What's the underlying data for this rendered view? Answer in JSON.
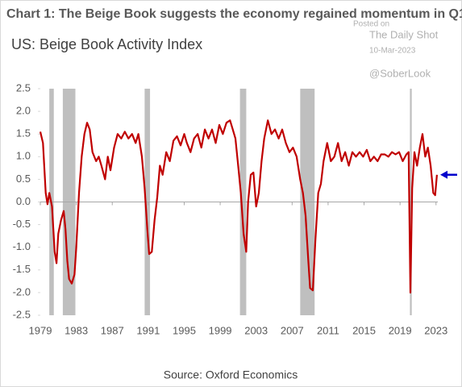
{
  "chart_data": {
    "type": "line",
    "title": "Chart 1: The Beige Book suggests the economy regained momentum in Q1",
    "subtitle": "US: Beige Book Activity Index",
    "source": "Source: Oxford Economics",
    "watermark": [
      "Posted on",
      "The Daily Shot",
      "10-Mar-2023",
      "@SoberLook"
    ],
    "color": "#c00000",
    "shade_color": "#bfbfbf",
    "shaded_periods": [
      [
        1980.0,
        1980.5
      ],
      [
        1981.5,
        1982.9
      ],
      [
        1990.6,
        1991.2
      ],
      [
        2001.2,
        2001.9
      ],
      [
        2007.9,
        2009.5
      ],
      [
        2020.1,
        2020.3
      ]
    ],
    "x": [
      1979.0,
      1979.3,
      1979.6,
      1979.8,
      1980.0,
      1980.3,
      1980.6,
      1980.8,
      1981.0,
      1981.3,
      1981.6,
      1981.8,
      1982.0,
      1982.2,
      1982.5,
      1982.8,
      1983.0,
      1983.3,
      1983.6,
      1983.9,
      1984.2,
      1984.5,
      1984.8,
      1985.2,
      1985.5,
      1985.8,
      1986.2,
      1986.5,
      1986.8,
      1987.2,
      1987.6,
      1988.0,
      1988.4,
      1988.8,
      1989.2,
      1989.6,
      1989.9,
      1990.3,
      1990.6,
      1990.9,
      1991.1,
      1991.4,
      1991.7,
      1992.0,
      1992.3,
      1992.6,
      1993.0,
      1993.4,
      1993.8,
      1994.2,
      1994.6,
      1995.0,
      1995.3,
      1995.7,
      1996.1,
      1996.5,
      1996.9,
      1997.3,
      1997.7,
      1998.1,
      1998.5,
      1998.9,
      1999.3,
      1999.7,
      2000.1,
      2000.4,
      2000.7,
      2001.0,
      2001.3,
      2001.6,
      2001.9,
      2002.1,
      2002.4,
      2002.7,
      2003.0,
      2003.3,
      2003.6,
      2003.9,
      2004.3,
      2004.7,
      2005.1,
      2005.5,
      2005.9,
      2006.3,
      2006.7,
      2007.1,
      2007.5,
      2007.9,
      2008.2,
      2008.5,
      2008.8,
      2009.0,
      2009.3,
      2009.6,
      2009.9,
      2010.2,
      2010.5,
      2010.9,
      2011.3,
      2011.7,
      2012.1,
      2012.5,
      2012.9,
      2013.3,
      2013.7,
      2014.1,
      2014.5,
      2014.9,
      2015.3,
      2015.7,
      2016.1,
      2016.5,
      2016.9,
      2017.3,
      2017.7,
      2018.1,
      2018.5,
      2018.9,
      2019.3,
      2019.7,
      2019.95,
      2020.15,
      2020.35,
      2020.6,
      2020.9,
      2021.2,
      2021.5,
      2021.8,
      2022.1,
      2022.4,
      2022.7,
      2022.9,
      2023.1
    ],
    "values": [
      1.55,
      1.3,
      0.2,
      -0.05,
      0.2,
      -0.1,
      -1.1,
      -1.35,
      -0.7,
      -0.4,
      -0.2,
      -0.6,
      -1.3,
      -1.7,
      -1.8,
      -1.6,
      -1.0,
      0.2,
      1.0,
      1.5,
      1.75,
      1.6,
      1.1,
      0.9,
      1.0,
      0.8,
      0.5,
      1.0,
      0.7,
      1.2,
      1.5,
      1.4,
      1.55,
      1.4,
      1.5,
      1.3,
      1.5,
      1.0,
      0.3,
      -0.6,
      -1.15,
      -1.1,
      -0.4,
      0.1,
      0.8,
      0.6,
      1.1,
      0.9,
      1.35,
      1.45,
      1.25,
      1.5,
      1.3,
      1.1,
      1.4,
      1.5,
      1.2,
      1.6,
      1.4,
      1.6,
      1.3,
      1.7,
      1.5,
      1.75,
      1.8,
      1.6,
      1.4,
      0.8,
      0.2,
      -0.7,
      -1.1,
      0.0,
      0.6,
      0.65,
      -0.1,
      0.2,
      0.9,
      1.4,
      1.8,
      1.5,
      1.6,
      1.4,
      1.6,
      1.3,
      1.1,
      1.2,
      1.0,
      0.5,
      0.2,
      -0.3,
      -1.3,
      -1.9,
      -1.95,
      -0.8,
      0.2,
      0.4,
      0.9,
      1.3,
      0.9,
      1.0,
      1.3,
      0.9,
      1.1,
      0.8,
      1.1,
      1.0,
      1.1,
      1.0,
      1.15,
      0.9,
      1.0,
      0.9,
      1.05,
      1.05,
      1.0,
      1.1,
      1.05,
      1.1,
      0.9,
      1.05,
      1.1,
      -2.0,
      0.3,
      1.1,
      0.8,
      1.2,
      1.5,
      1.0,
      1.2,
      0.8,
      0.2,
      0.15,
      0.6
    ],
    "xlim": [
      1979,
      2023.2
    ],
    "xticks": [
      1979,
      1983,
      1987,
      1991,
      1995,
      1999,
      2003,
      2007,
      2011,
      2015,
      2019,
      2023
    ],
    "ylim": [
      -2.5,
      2.5
    ],
    "yticks": [
      2.5,
      {
        "value": 2,
        "label": "2.0"
      },
      1.5,
      {
        "value": 1,
        "label": "1.0"
      },
      0.5,
      {
        "value": 0,
        "label": "0.0"
      },
      -0.5,
      {
        "value": -1,
        "label": "-1.0"
      },
      -1.5,
      {
        "value": -2,
        "label": "-2.0"
      },
      -2.5
    ],
    "arrow_color": "#0000cc"
  }
}
